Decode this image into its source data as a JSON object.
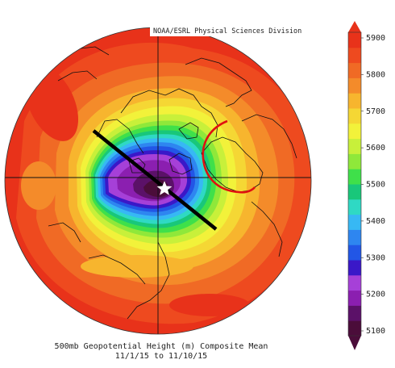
{
  "credit": "NOAA/ESRL Physical Sciences Division",
  "caption": {
    "line1": "500mb Geopotential Height (m) Composite Mean",
    "line2": "11/1/15  to 11/10/15"
  },
  "colorbar": {
    "labels": [
      "5900",
      "5800",
      "5700",
      "5600",
      "5500",
      "5400",
      "5300",
      "5200",
      "5100"
    ],
    "colors": [
      "#4b0d3a",
      "#5b1168",
      "#8b1fb0",
      "#a640d8",
      "#3a18c8",
      "#2256e6",
      "#2e86f0",
      "#37b8f4",
      "#2fd9c4",
      "#19c77a",
      "#3fe04a",
      "#8fe83a",
      "#c8f03a",
      "#f2f23a",
      "#f5d734",
      "#f7b52e",
      "#f48b2a",
      "#f06a25",
      "#ee4a1f",
      "#e8321a"
    ]
  },
  "annotations": {
    "star": "pole-marker",
    "line": "trough-axis",
    "circle": "ridge-highlight"
  }
}
